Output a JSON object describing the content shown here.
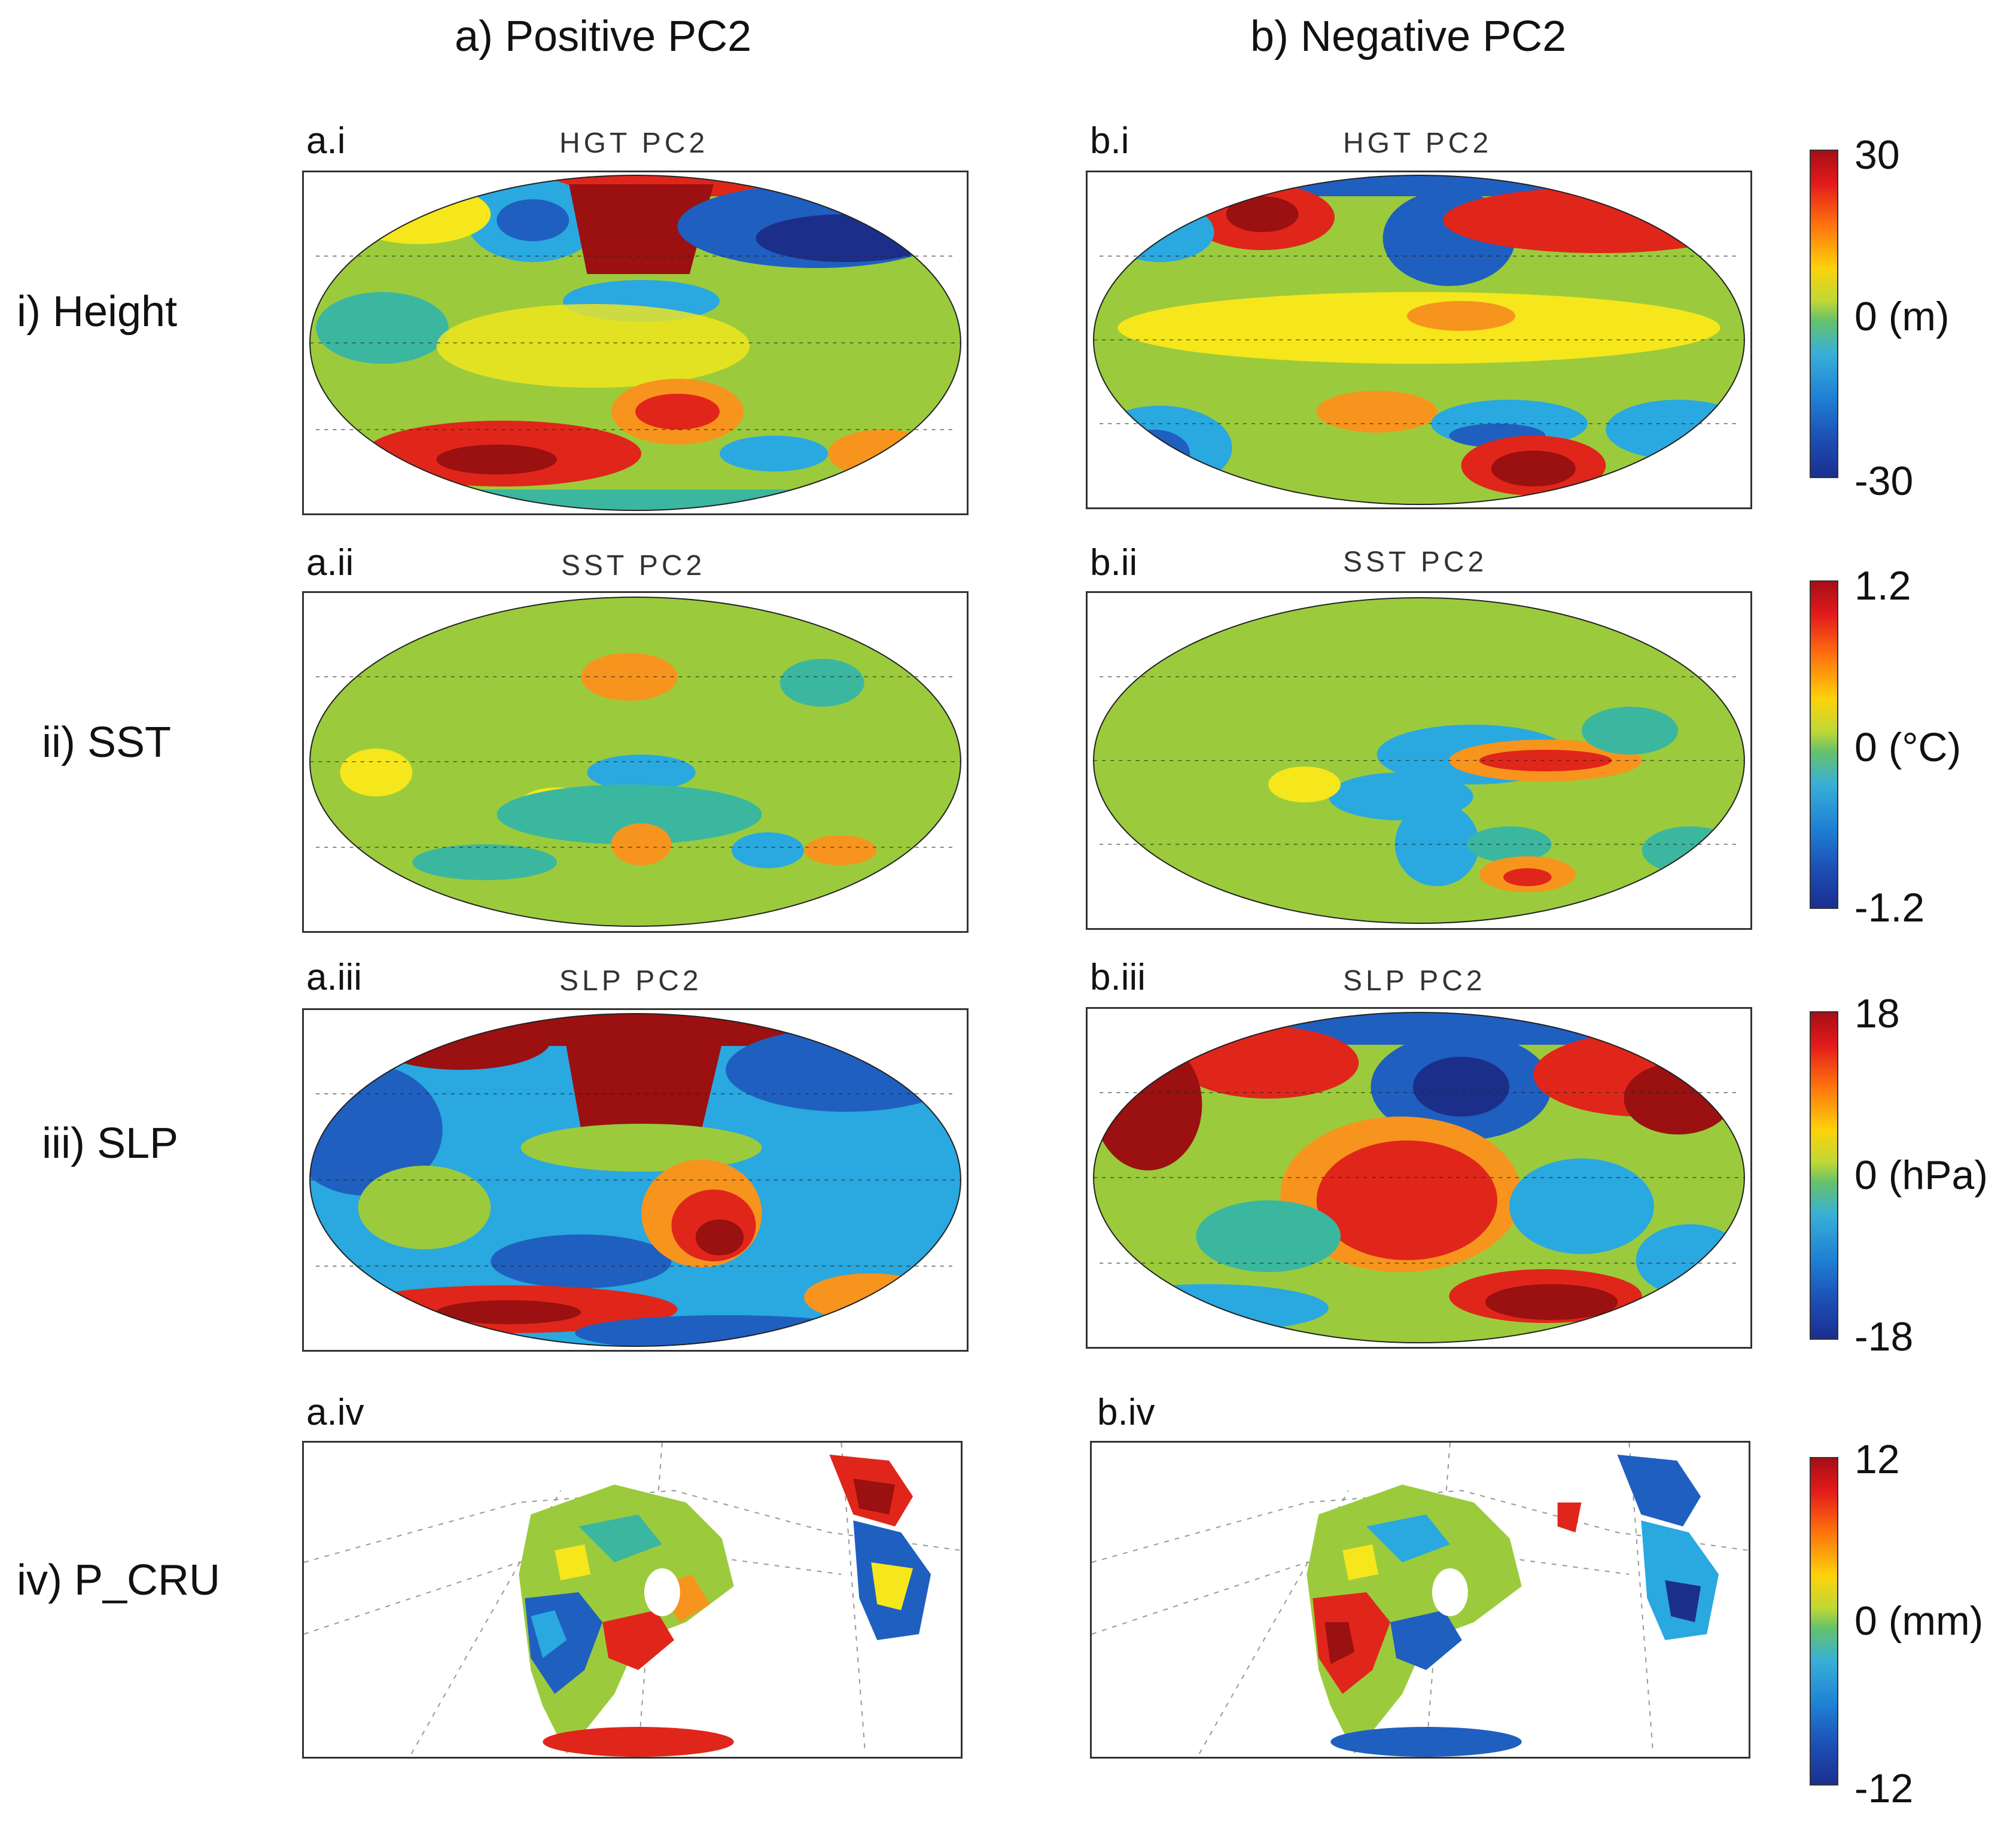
{
  "columns": {
    "positive": "a) Positive PC2",
    "negative": "b) Negative PC2"
  },
  "rows": {
    "height": "i) Height",
    "sst": "ii) SST",
    "slp": "iii) SLP",
    "pcru": "iv) P_CRU"
  },
  "panels": {
    "ai": {
      "id": "a.i",
      "title": "HGT PC2"
    },
    "bi": {
      "id": "b.i",
      "title": "HGT PC2"
    },
    "aii": {
      "id": "a.ii",
      "title": "SST PC2"
    },
    "bii": {
      "id": "b.ii",
      "title": "SST PC2"
    },
    "aiii": {
      "id": "a.iii",
      "title": "SLP PC2"
    },
    "biii": {
      "id": "b.iii",
      "title": "SLP PC2"
    },
    "aiv": {
      "id": "a.iv"
    },
    "biv": {
      "id": "b.iv"
    }
  },
  "colorbars": {
    "hgt": {
      "max": "30",
      "mid": "0 (m)",
      "min": "-30"
    },
    "sst": {
      "max": "1.2",
      "mid": "0 (°C)",
      "min": "-1.2"
    },
    "slp": {
      "max": "18",
      "mid": "0 (hPa)",
      "min": "-18"
    },
    "pcru": {
      "max": "12",
      "mid": "0 (mm)",
      "min": "-12"
    }
  },
  "colors": {
    "dark_red": "#9b1010",
    "red": "#e0261a",
    "orange": "#f7941d",
    "yellow": "#f5e71b",
    "green": "#9bcb3c",
    "teal": "#3bb7a0",
    "cyan": "#2aa8e0",
    "blue": "#1f5fc0",
    "navy": "#1b2f8a"
  }
}
